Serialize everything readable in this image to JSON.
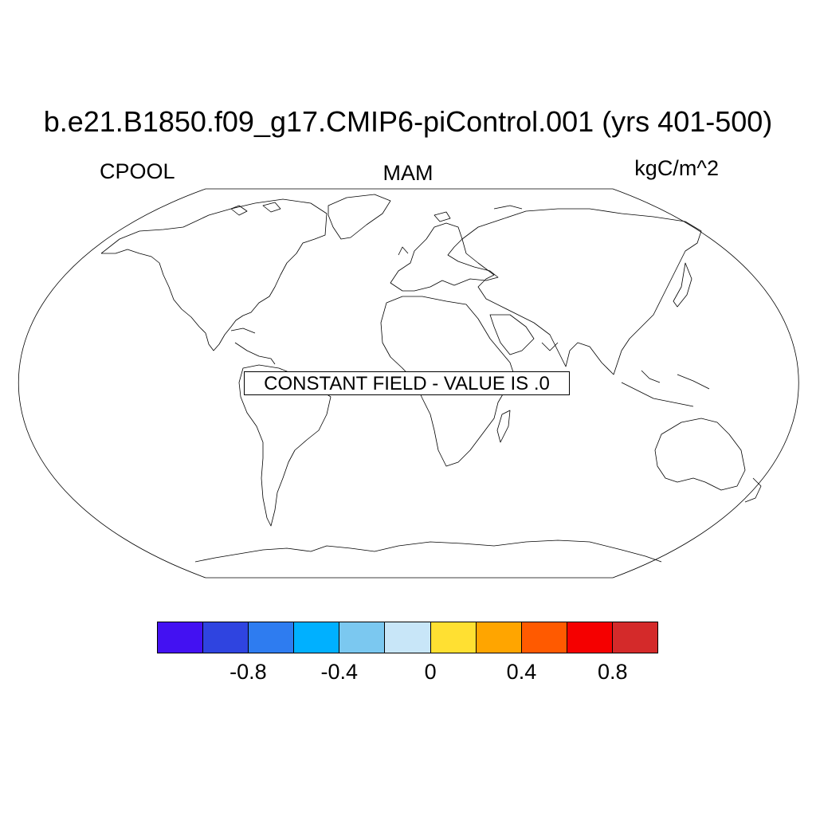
{
  "title": "b.e21.B1850.f09_g17.CMIP6-piControl.001 (yrs 401-500)",
  "left_label": "CPOOL",
  "center_label": "MAM",
  "right_label": "kgC/m^2",
  "notice": "CONSTANT FIELD - VALUE IS .0",
  "colorbar": {
    "colors": [
      "#4311f2",
      "#2f44e0",
      "#2e7cf0",
      "#00b0ff",
      "#7bc8f0",
      "#c8e6f8",
      "#ffe032",
      "#ffa500",
      "#ff5a00",
      "#f50000",
      "#d42a2a"
    ],
    "tick_labels": [
      "-0.8",
      "-0.4",
      "0",
      "0.4",
      "0.8"
    ]
  }
}
